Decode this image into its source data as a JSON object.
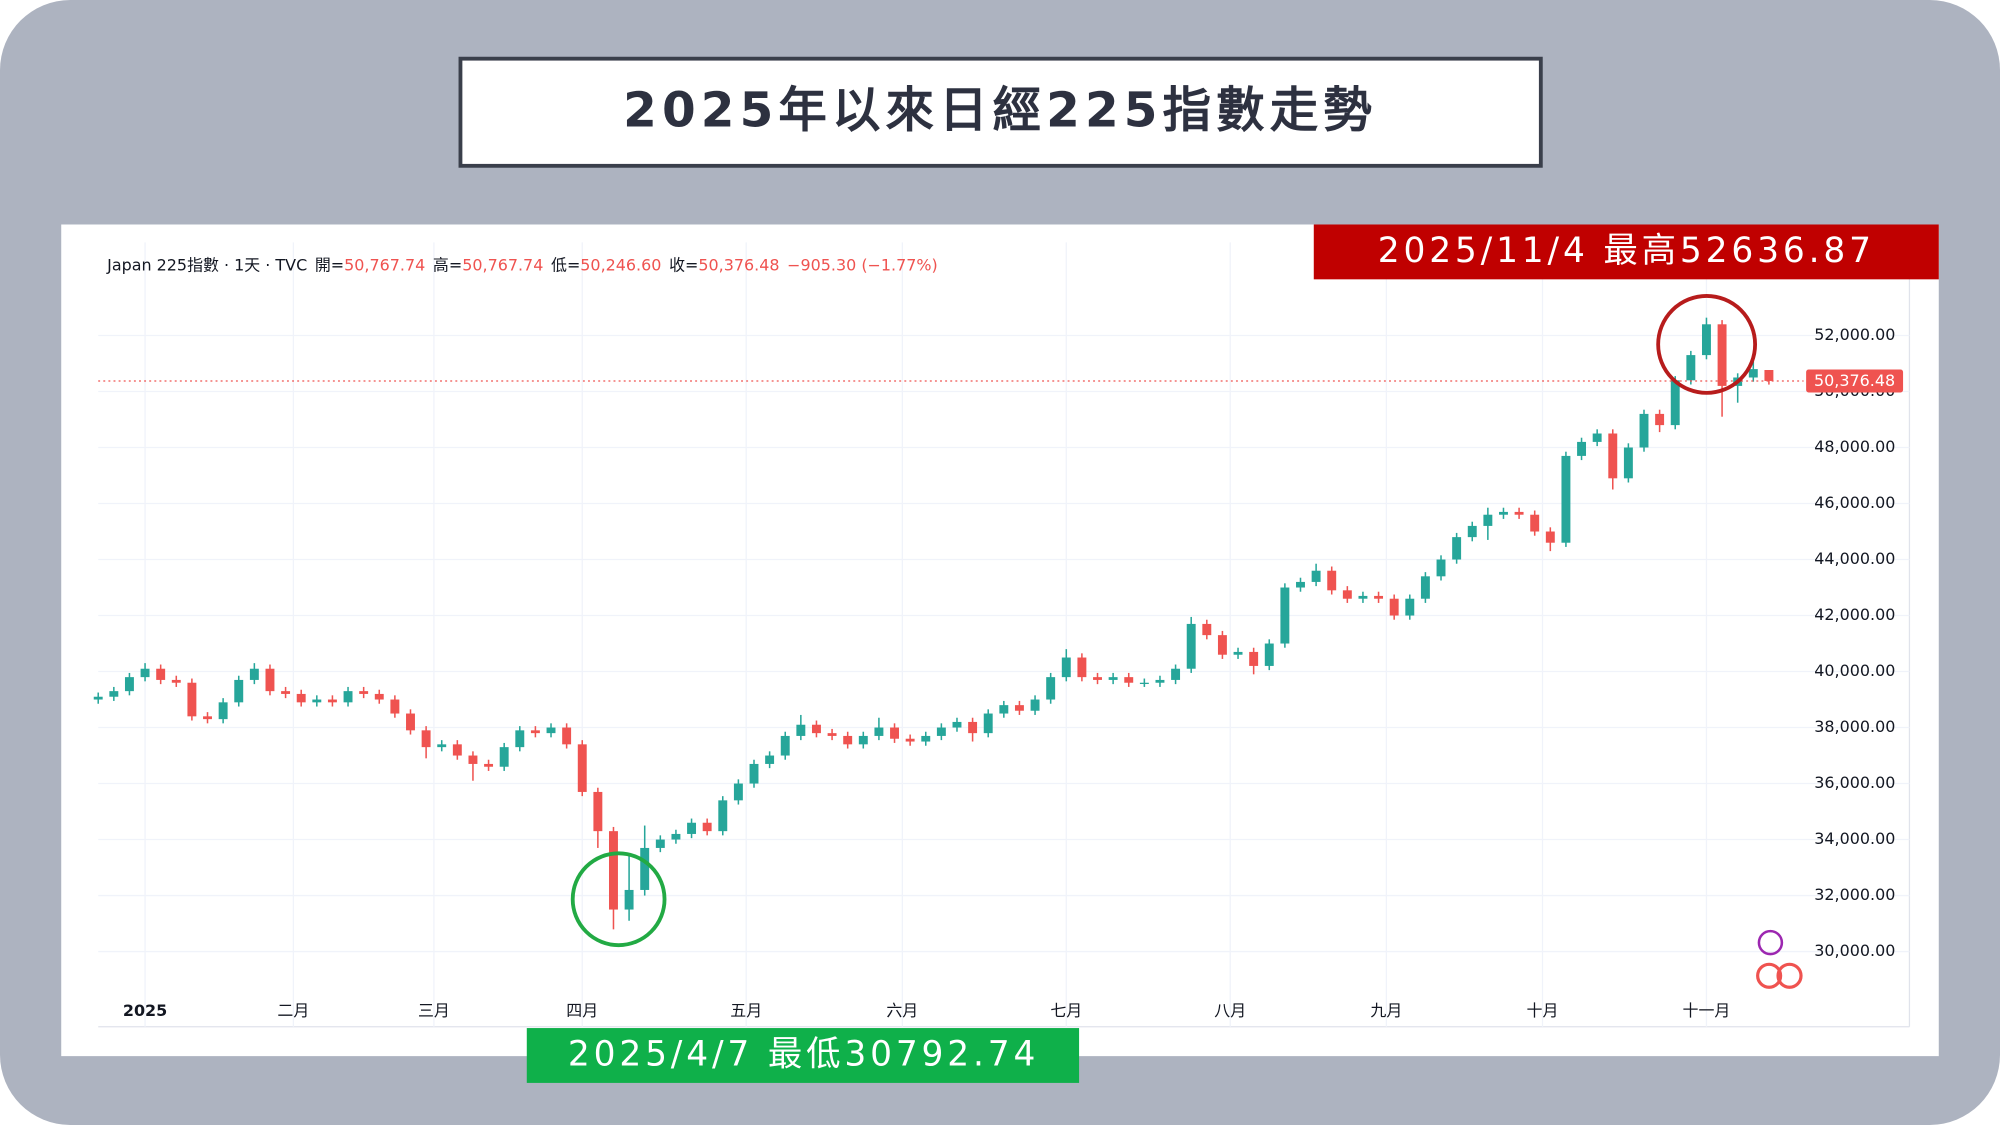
{
  "chart_data": {
    "type": "candlestick",
    "title": "2025年以來日經225指數走勢",
    "header": {
      "symbol": "Japan 225指數 · 1天 · TVC",
      "fields": [
        {
          "label": "開=",
          "value": "50,767.74"
        },
        {
          "label": "高=",
          "value": "50,767.74"
        },
        {
          "label": "低=",
          "value": "50,246.60"
        },
        {
          "label": "收=",
          "value": "50,376.48"
        }
      ],
      "change": "−905.30 (−1.77%)"
    },
    "annotations": [
      {
        "text": "2025/11/4 最高52636.87",
        "color": "#c00000"
      },
      {
        "text": "2025/4/7 最低30792.74",
        "color": "#0fb04a"
      }
    ],
    "last_price": {
      "value": 50376.48,
      "label": "50,376.48"
    },
    "up_color": "#26a69a",
    "down_color": "#ef5350",
    "grid": true,
    "xlim": [
      0,
      232
    ],
    "ylim": [
      28680,
      53960
    ],
    "xticks": [
      {
        "value": 6,
        "label": "2025"
      },
      {
        "value": 25,
        "label": "二月"
      },
      {
        "value": 43,
        "label": "三月"
      },
      {
        "value": 62,
        "label": "四月"
      },
      {
        "value": 83,
        "label": "五月"
      },
      {
        "value": 103,
        "label": "六月"
      },
      {
        "value": 124,
        "label": "七月"
      },
      {
        "value": 145,
        "label": "八月"
      },
      {
        "value": 165,
        "label": "九月"
      },
      {
        "value": 185,
        "label": "十月"
      },
      {
        "value": 206,
        "label": "十一月"
      }
    ],
    "yticks": [
      {
        "value": 30000,
        "label": "30,000.00"
      },
      {
        "value": 32000,
        "label": "32,000.00"
      },
      {
        "value": 34000,
        "label": "34,000.00"
      },
      {
        "value": 36000,
        "label": "36,000.00"
      },
      {
        "value": 38000,
        "label": "38,000.00"
      },
      {
        "value": 40000,
        "label": "40,000.00"
      },
      {
        "value": 42000,
        "label": "42,000.00"
      },
      {
        "value": 44000,
        "label": "44,000.00"
      },
      {
        "value": 46000,
        "label": "46,000.00"
      },
      {
        "value": 48000,
        "label": "48,000.00"
      },
      {
        "value": 50000,
        "label": "50,000.00"
      },
      {
        "value": 52000,
        "label": "52,000.00"
      }
    ],
    "x": [
      0,
      2,
      4,
      6,
      8,
      10,
      12,
      14,
      16,
      18,
      20,
      22,
      24,
      26,
      28,
      30,
      32,
      34,
      36,
      38,
      40,
      42,
      44,
      46,
      48,
      50,
      52,
      54,
      56,
      58,
      60,
      62,
      64,
      66,
      68,
      70,
      72,
      74,
      76,
      78,
      80,
      82,
      84,
      86,
      88,
      90,
      92,
      94,
      96,
      98,
      100,
      102,
      104,
      106,
      108,
      110,
      112,
      114,
      116,
      118,
      120,
      122,
      124,
      126,
      128,
      130,
      132,
      134,
      136,
      138,
      140,
      142,
      144,
      146,
      148,
      150,
      152,
      154,
      156,
      158,
      160,
      162,
      164,
      166,
      168,
      170,
      172,
      174,
      176,
      178,
      180,
      182,
      184,
      186,
      188,
      190,
      192,
      194,
      196,
      198,
      200,
      202,
      204,
      206,
      208,
      210,
      212,
      214
    ],
    "open": [
      39000,
      39100,
      39300,
      39800,
      40100,
      39700,
      39600,
      38400,
      38300,
      38900,
      39700,
      40100,
      39300,
      39200,
      38900,
      39000,
      38900,
      39300,
      39200,
      39000,
      38500,
      37900,
      37300,
      37400,
      37000,
      36700,
      36600,
      37300,
      37900,
      37800,
      38000,
      37400,
      35700,
      34300,
      31500,
      32200,
      33700,
      34000,
      34200,
      34600,
      34300,
      35400,
      36000,
      36700,
      37000,
      37700,
      38100,
      37800,
      37700,
      37400,
      37700,
      38000,
      37600,
      37500,
      37700,
      38000,
      38200,
      37800,
      38500,
      38800,
      38600,
      39000,
      39800,
      40500,
      39800,
      39700,
      39800,
      39600,
      39600,
      39700,
      40100,
      41700,
      41300,
      40600,
      40700,
      40200,
      41000,
      43000,
      43200,
      43600,
      42900,
      42600,
      42700,
      42600,
      42000,
      42600,
      43400,
      44000,
      44800,
      45200,
      45600,
      45700,
      45600,
      45000,
      44600,
      47700,
      48200,
      48500,
      46900,
      48000,
      49200,
      48800,
      50400,
      51300,
      52400,
      50200,
      50500,
      50767.74
    ],
    "high": [
      39250,
      39450,
      39950,
      40300,
      40250,
      39850,
      39750,
      38550,
      39050,
      39850,
      40300,
      40250,
      39450,
      39350,
      39150,
      39150,
      39450,
      39450,
      39350,
      39150,
      38650,
      38050,
      37550,
      37550,
      37150,
      36850,
      37450,
      38050,
      38050,
      38150,
      38150,
      37550,
      35850,
      34450,
      33500,
      34500,
      34150,
      34350,
      34750,
      34750,
      35550,
      36150,
      36850,
      37150,
      37850,
      38450,
      38250,
      37950,
      37850,
      37850,
      38350,
      38150,
      37750,
      37850,
      38150,
      38350,
      38350,
      38650,
      38950,
      38950,
      39150,
      39950,
      40800,
      40650,
      39950,
      39950,
      39950,
      39750,
      39850,
      40250,
      41950,
      41850,
      41450,
      40850,
      40850,
      41150,
      43150,
      43350,
      43850,
      43750,
      43050,
      42850,
      42850,
      42750,
      42750,
      43550,
      44150,
      44950,
      45350,
      45850,
      45850,
      45850,
      45750,
      45150,
      47850,
      48350,
      48650,
      48650,
      48150,
      49350,
      49350,
      50550,
      51450,
      52636.87,
      52550,
      50650,
      51200,
      50767.74
    ],
    "low": [
      38850,
      38950,
      39150,
      39650,
      39550,
      39450,
      38250,
      38150,
      38150,
      38750,
      39550,
      39150,
      39050,
      38750,
      38750,
      38750,
      38750,
      39050,
      38850,
      38350,
      37750,
      36900,
      37150,
      36850,
      36100,
      36450,
      36450,
      37150,
      37650,
      37650,
      37250,
      35550,
      33700,
      30792.74,
      31100,
      32000,
      33550,
      33850,
      34050,
      34150,
      34150,
      35250,
      35850,
      36550,
      36850,
      37550,
      37650,
      37550,
      37250,
      37250,
      37550,
      37450,
      37350,
      37350,
      37550,
      37850,
      37500,
      37650,
      38350,
      38450,
      38450,
      38850,
      39650,
      39650,
      39550,
      39550,
      39450,
      39450,
      39450,
      39550,
      39950,
      41150,
      40450,
      40450,
      39900,
      40050,
      40850,
      42850,
      43050,
      42750,
      42450,
      42450,
      42450,
      41850,
      41850,
      42450,
      43250,
      43850,
      44650,
      44700,
      45450,
      45450,
      44850,
      44300,
      44450,
      47550,
      48050,
      46500,
      46750,
      47850,
      48550,
      48650,
      50250,
      51150,
      49100,
      49600,
      50350,
      50246.6
    ],
    "close": [
      39100,
      39300,
      39800,
      40100,
      39700,
      39600,
      38400,
      38300,
      38900,
      39700,
      40100,
      39300,
      39200,
      38900,
      39000,
      38900,
      39300,
      39200,
      39000,
      38500,
      37900,
      37300,
      37400,
      37000,
      36700,
      36600,
      37300,
      37900,
      37800,
      38000,
      37400,
      35700,
      34300,
      31500,
      32200,
      33700,
      34000,
      34200,
      34600,
      34300,
      35400,
      36000,
      36700,
      37000,
      37700,
      38100,
      37800,
      37700,
      37400,
      37700,
      38000,
      37600,
      37500,
      37700,
      38000,
      38200,
      37800,
      38500,
      38800,
      38600,
      39000,
      39800,
      40500,
      39800,
      39700,
      39800,
      39600,
      39600,
      39700,
      40100,
      41700,
      41300,
      40600,
      40700,
      40200,
      41000,
      43000,
      43200,
      43600,
      42900,
      42600,
      42700,
      42600,
      42000,
      42600,
      43400,
      44000,
      44800,
      45200,
      45600,
      45700,
      45600,
      45000,
      44600,
      47700,
      48200,
      48500,
      46900,
      48000,
      49200,
      48800,
      50400,
      51300,
      52400,
      50200,
      50500,
      50800,
      50376.48
    ]
  }
}
